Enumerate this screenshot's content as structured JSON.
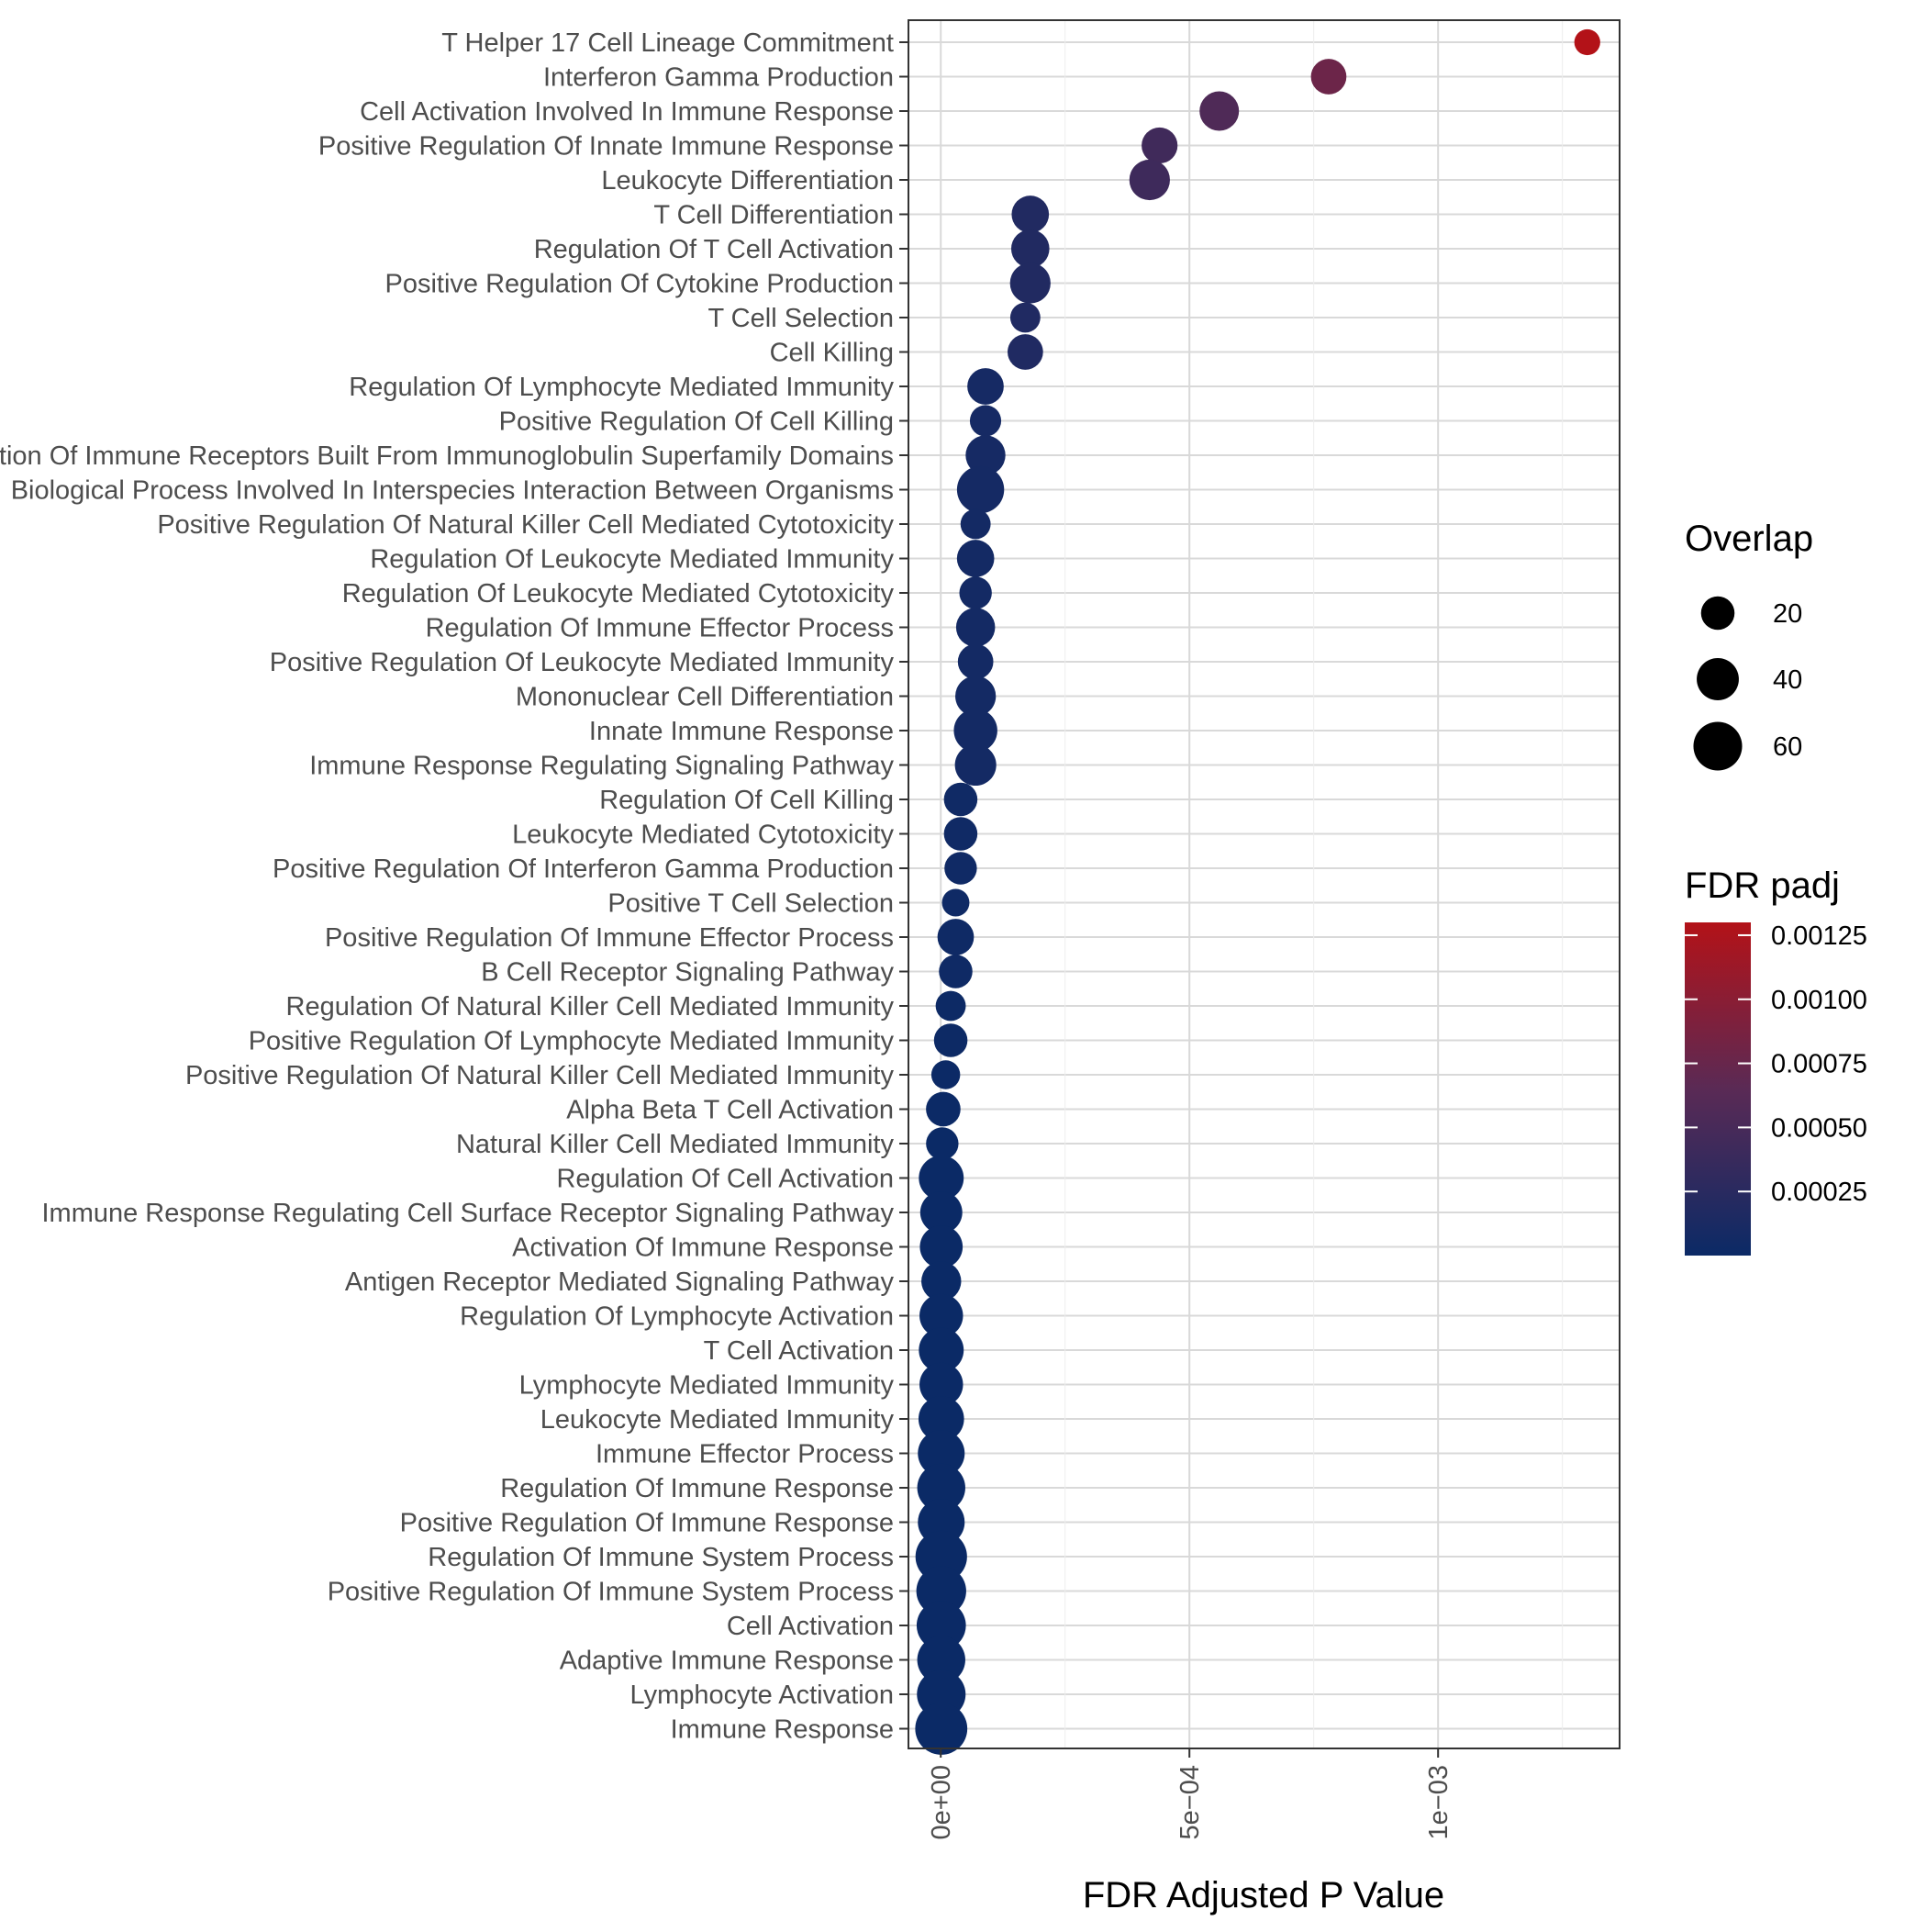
{
  "chart_data": {
    "type": "scatter",
    "xlabel": "FDR Adjusted P Value",
    "xlim": [
      -6.5e-05,
      0.001365
    ],
    "x_ticks": [
      {
        "value": 0,
        "label": "0e+00"
      },
      {
        "value": 0.0005,
        "label": "5e−04"
      },
      {
        "value": 0.001,
        "label": "1e−03"
      }
    ],
    "grid": true,
    "legend_placement": "right",
    "size_legend": {
      "title": "Overlap",
      "entries": [
        {
          "value": 20,
          "label": "20"
        },
        {
          "value": 40,
          "label": "40"
        },
        {
          "value": 60,
          "label": "60"
        }
      ]
    },
    "color_legend": {
      "title": "FDR padj",
      "low_color": "#0b2a66",
      "high_color": "#b31218",
      "min": 0,
      "max": 0.0013,
      "ticks": [
        {
          "value": 0.00025,
          "label": "0.00025"
        },
        {
          "value": 0.0005,
          "label": "0.00050"
        },
        {
          "value": 0.00075,
          "label": "0.00075"
        },
        {
          "value": 0.001,
          "label": "0.00100"
        },
        {
          "value": 0.00125,
          "label": "0.00125"
        }
      ]
    },
    "points": [
      {
        "term": "T Helper 17 Cell Lineage Commitment",
        "x": 0.0013,
        "overlap": 8
      },
      {
        "term": "Interferon Gamma Production",
        "x": 0.00078,
        "overlap": 24
      },
      {
        "term": "Cell Activation Involved In Immune Response",
        "x": 0.00056,
        "overlap": 33
      },
      {
        "term": "Positive Regulation Of Innate Immune Response",
        "x": 0.00044,
        "overlap": 25
      },
      {
        "term": "Leukocyte Differentiation",
        "x": 0.00042,
        "overlap": 36
      },
      {
        "term": "T Cell Differentiation",
        "x": 0.00018,
        "overlap": 28
      },
      {
        "term": "Regulation Of T Cell Activation",
        "x": 0.00018,
        "overlap": 30
      },
      {
        "term": "Positive Regulation Of Cytokine Production",
        "x": 0.00018,
        "overlap": 36
      },
      {
        "term": "T Cell Selection",
        "x": 0.00017,
        "overlap": 14
      },
      {
        "term": "Cell Killing",
        "x": 0.00017,
        "overlap": 24
      },
      {
        "term": "Regulation Of Lymphocyte Mediated Immunity",
        "x": 9e-05,
        "overlap": 26
      },
      {
        "term": "Positive Regulation Of Cell Killing",
        "x": 9e-05,
        "overlap": 16
      },
      {
        "term": "Adaptive Immune Response Based On Somatic Recombination Of Immune Receptors Built From Immunoglobulin Superfamily Domains",
        "x": 9e-05,
        "overlap": 34
      },
      {
        "term": "Biological Process Involved In Interspecies Interaction Between Organisms",
        "x": 8e-05,
        "overlap": 55
      },
      {
        "term": "Positive Regulation Of Natural Killer Cell Mediated Cytotoxicity",
        "x": 7e-05,
        "overlap": 14
      },
      {
        "term": "Regulation Of Leukocyte Mediated Immunity",
        "x": 7e-05,
        "overlap": 28
      },
      {
        "term": "Regulation Of Leukocyte Mediated Cytotoxicity",
        "x": 7e-05,
        "overlap": 18
      },
      {
        "term": "Regulation Of Immune Effector Process",
        "x": 7e-05,
        "overlap": 32
      },
      {
        "term": "Positive Regulation Of Leukocyte Mediated Immunity",
        "x": 7e-05,
        "overlap": 24
      },
      {
        "term": "Mononuclear Cell Differentiation",
        "x": 7e-05,
        "overlap": 36
      },
      {
        "term": "Innate Immune Response",
        "x": 7e-05,
        "overlap": 44
      },
      {
        "term": "Immune Response Regulating Signaling Pathway",
        "x": 7e-05,
        "overlap": 38
      },
      {
        "term": "Regulation Of Cell Killing",
        "x": 4e-05,
        "overlap": 20
      },
      {
        "term": "Leukocyte Mediated Cytotoxicity",
        "x": 4e-05,
        "overlap": 20
      },
      {
        "term": "Positive Regulation Of Interferon Gamma Production",
        "x": 4e-05,
        "overlap": 18
      },
      {
        "term": "Positive T Cell Selection",
        "x": 3e-05,
        "overlap": 10
      },
      {
        "term": "Positive Regulation Of Immune Effector Process",
        "x": 3e-05,
        "overlap": 26
      },
      {
        "term": "B Cell Receptor Signaling Pathway",
        "x": 3e-05,
        "overlap": 20
      },
      {
        "term": "Regulation Of Natural Killer Cell Mediated Immunity",
        "x": 2e-05,
        "overlap": 14
      },
      {
        "term": "Positive Regulation Of Lymphocyte Mediated Immunity",
        "x": 2e-05,
        "overlap": 20
      },
      {
        "term": "Positive Regulation Of Natural Killer Cell Mediated Immunity",
        "x": 1e-05,
        "overlap": 12
      },
      {
        "term": "Alpha Beta T Cell Activation",
        "x": 5e-06,
        "overlap": 22
      },
      {
        "term": "Natural Killer Cell Mediated Immunity",
        "x": 3e-06,
        "overlap": 18
      },
      {
        "term": "Regulation Of Cell Activation",
        "x": 1e-06,
        "overlap": 48
      },
      {
        "term": "Immune Response Regulating Cell Surface Receptor Signaling Pathway",
        "x": 1e-06,
        "overlap": 40
      },
      {
        "term": "Activation Of Immune Response",
        "x": 1e-06,
        "overlap": 42
      },
      {
        "term": "Antigen Receptor Mediated Signaling Pathway",
        "x": 1e-06,
        "overlap": 34
      },
      {
        "term": "Regulation Of Lymphocyte Activation",
        "x": 1e-06,
        "overlap": 44
      },
      {
        "term": "T Cell Activation",
        "x": 1e-06,
        "overlap": 48
      },
      {
        "term": "Lymphocyte Mediated Immunity",
        "x": 1e-06,
        "overlap": 44
      },
      {
        "term": "Leukocyte Mediated Immunity",
        "x": 1e-06,
        "overlap": 50
      },
      {
        "term": "Immune Effector Process",
        "x": 1e-06,
        "overlap": 54
      },
      {
        "term": "Regulation Of Immune Response",
        "x": 1e-06,
        "overlap": 58
      },
      {
        "term": "Positive Regulation Of Immune Response",
        "x": 1e-06,
        "overlap": 54
      },
      {
        "term": "Regulation Of Immune System Process",
        "x": 1e-06,
        "overlap": 70
      },
      {
        "term": "Positive Regulation Of Immune System Process",
        "x": 1e-06,
        "overlap": 64
      },
      {
        "term": "Cell Activation",
        "x": 1e-06,
        "overlap": 62
      },
      {
        "term": "Adaptive Immune Response",
        "x": 1e-06,
        "overlap": 58
      },
      {
        "term": "Lymphocyte Activation",
        "x": 1e-06,
        "overlap": 60
      },
      {
        "term": "Immune Response",
        "x": 1e-06,
        "overlap": 72
      }
    ]
  }
}
